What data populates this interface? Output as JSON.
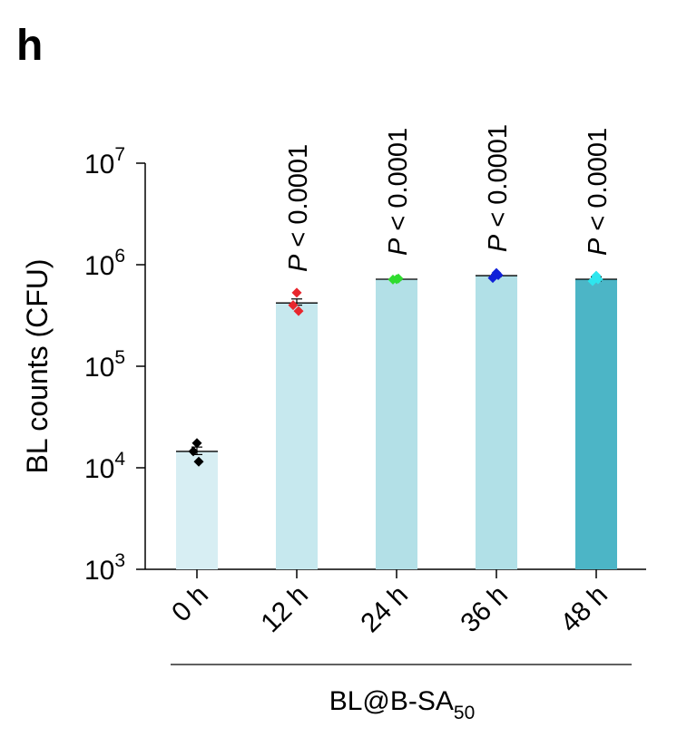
{
  "panel_label": "h",
  "chart_data": {
    "type": "bar",
    "ylabel": "BL counts (CFU)",
    "xlabel_main": "BL@B-SA",
    "xlabel_sub": "50",
    "yscale": "log",
    "ylim": [
      1000,
      10000000
    ],
    "y_ticks": [
      {
        "value": 1000,
        "base": "10",
        "exp": "3"
      },
      {
        "value": 10000,
        "base": "10",
        "exp": "4"
      },
      {
        "value": 100000,
        "base": "10",
        "exp": "5"
      },
      {
        "value": 1000000,
        "base": "10",
        "exp": "6"
      },
      {
        "value": 10000000,
        "base": "10",
        "exp": "7"
      }
    ],
    "categories": [
      "0 h",
      "12 h",
      "24 h",
      "36 h",
      "48 h"
    ],
    "values": [
      14500,
      420000,
      720000,
      780000,
      720000
    ],
    "errors_upper": [
      16000,
      460000,
      735000,
      800000,
      760000
    ],
    "errors_lower": [
      13500,
      400000,
      710000,
      765000,
      690000
    ],
    "points": [
      [
        17500,
        14500,
        11500
      ],
      [
        530000,
        400000,
        350000
      ],
      [
        720000,
        715000,
        730000
      ],
      [
        830000,
        740000,
        790000
      ],
      [
        780000,
        690000,
        720000
      ]
    ],
    "bar_colors": [
      "#d7eef3",
      "#c6e8ee",
      "#b3e0e7",
      "#b1e0e7",
      "#4cb5c6"
    ],
    "point_colors": [
      "#000000",
      "#e8262d",
      "#2fdc2f",
      "#1020d8",
      "#2ee6ee"
    ],
    "p_label_italic": "P",
    "p_labels": [
      "",
      " < 0.0001",
      " < 0.0001",
      " < 0.0001",
      " < 0.0001"
    ]
  }
}
